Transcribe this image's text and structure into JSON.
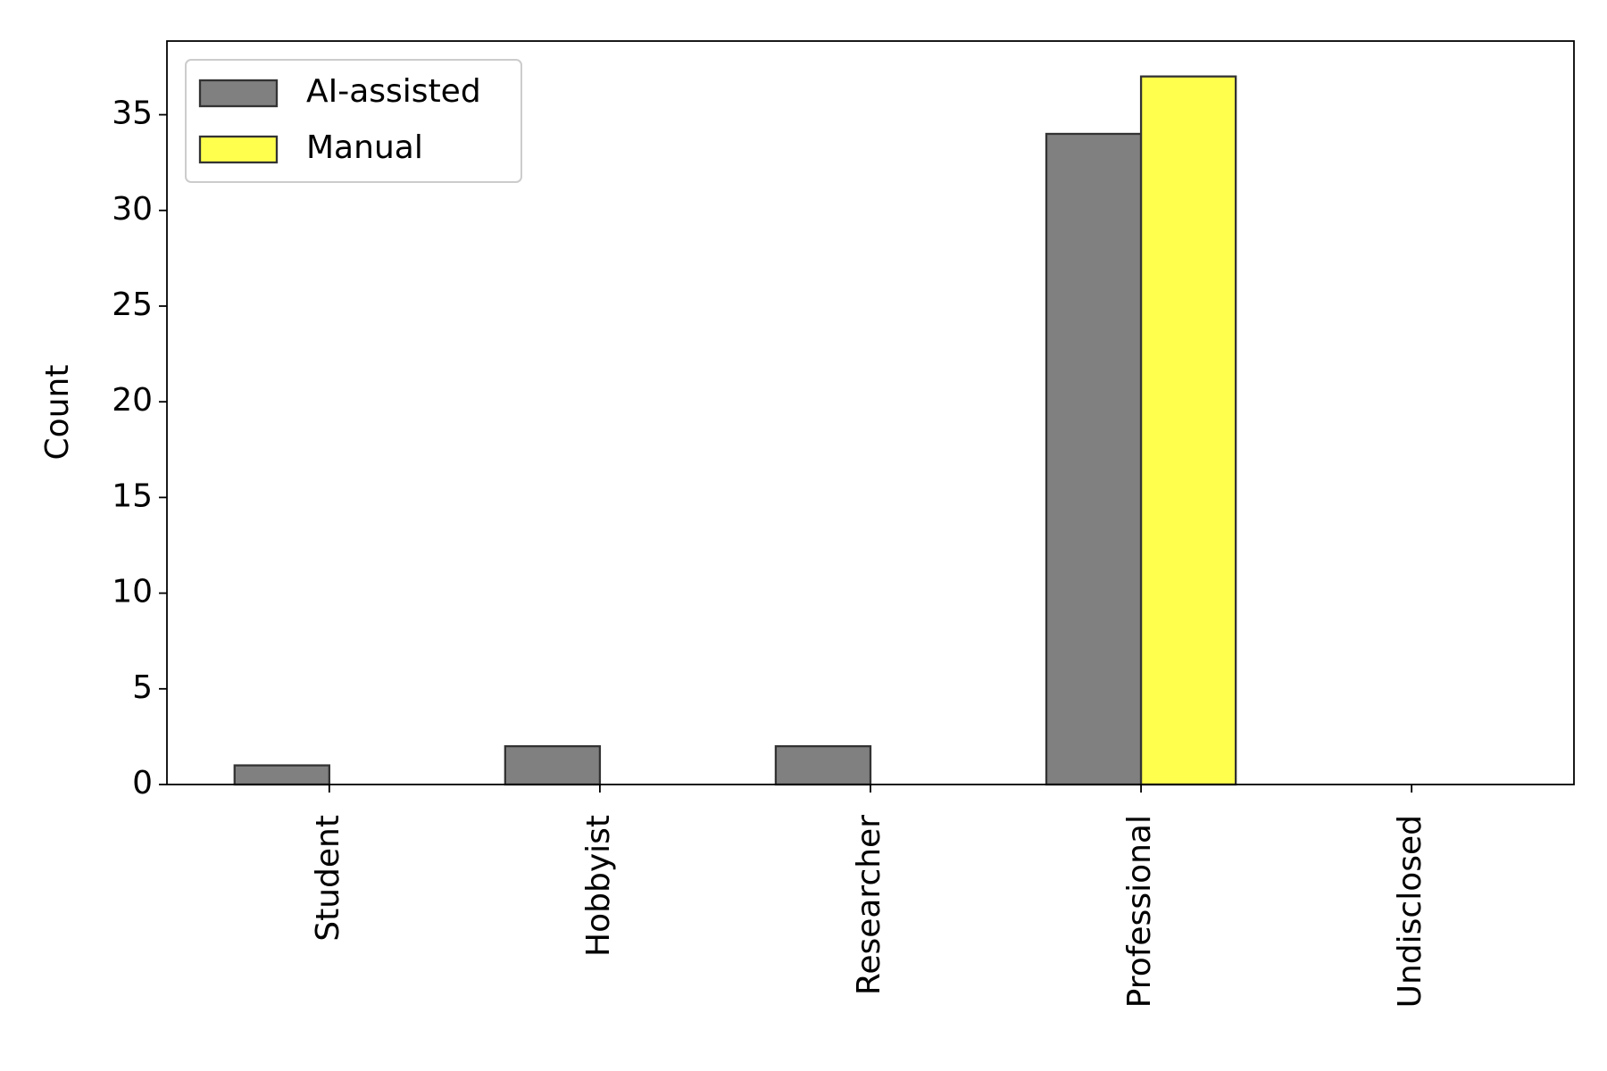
{
  "chart_data": {
    "type": "bar",
    "y_label": "Count",
    "categories": [
      "Student",
      "Hobbyist",
      "Researcher",
      "Professional",
      "Undisclosed"
    ],
    "series": [
      {
        "name": "AI-assisted",
        "color": "#808080",
        "values": [
          1,
          2,
          2,
          34,
          0
        ]
      },
      {
        "name": "Manual",
        "color": "#ffff4d",
        "values": [
          0,
          0,
          0,
          37,
          0
        ]
      }
    ],
    "ylim": [
      0,
      38.85
    ],
    "yticks": [
      0,
      5,
      10,
      15,
      20,
      25,
      30,
      35
    ],
    "grid": false,
    "legend": "upper left"
  }
}
